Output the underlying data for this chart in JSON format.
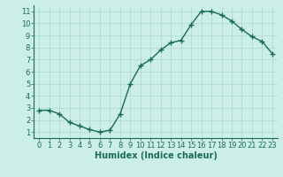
{
  "x": [
    0,
    1,
    2,
    3,
    4,
    5,
    6,
    7,
    8,
    9,
    10,
    11,
    12,
    13,
    14,
    15,
    16,
    17,
    18,
    19,
    20,
    21,
    22,
    23
  ],
  "y": [
    2.8,
    2.8,
    2.5,
    1.8,
    1.5,
    1.2,
    1.0,
    1.15,
    2.5,
    5.0,
    6.5,
    7.0,
    7.8,
    8.4,
    8.6,
    9.9,
    11.0,
    11.0,
    10.7,
    10.2,
    9.5,
    8.9,
    8.5,
    7.5
  ],
  "line_color": "#1a6b5a",
  "marker": "+",
  "background_color": "#cceee8",
  "grid_color": "#aad8d0",
  "xlabel": "Humidex (Indice chaleur)",
  "xlim": [
    -0.5,
    23.5
  ],
  "ylim": [
    0.5,
    11.5
  ],
  "yticks": [
    1,
    2,
    3,
    4,
    5,
    6,
    7,
    8,
    9,
    10,
    11
  ],
  "xticks": [
    0,
    1,
    2,
    3,
    4,
    5,
    6,
    7,
    8,
    9,
    10,
    11,
    12,
    13,
    14,
    15,
    16,
    17,
    18,
    19,
    20,
    21,
    22,
    23
  ],
  "text_color": "#1a6b5a",
  "xlabel_fontsize": 7,
  "tick_fontsize": 6,
  "line_width": 1.0,
  "marker_size": 4,
  "marker_edge_width": 1.0
}
